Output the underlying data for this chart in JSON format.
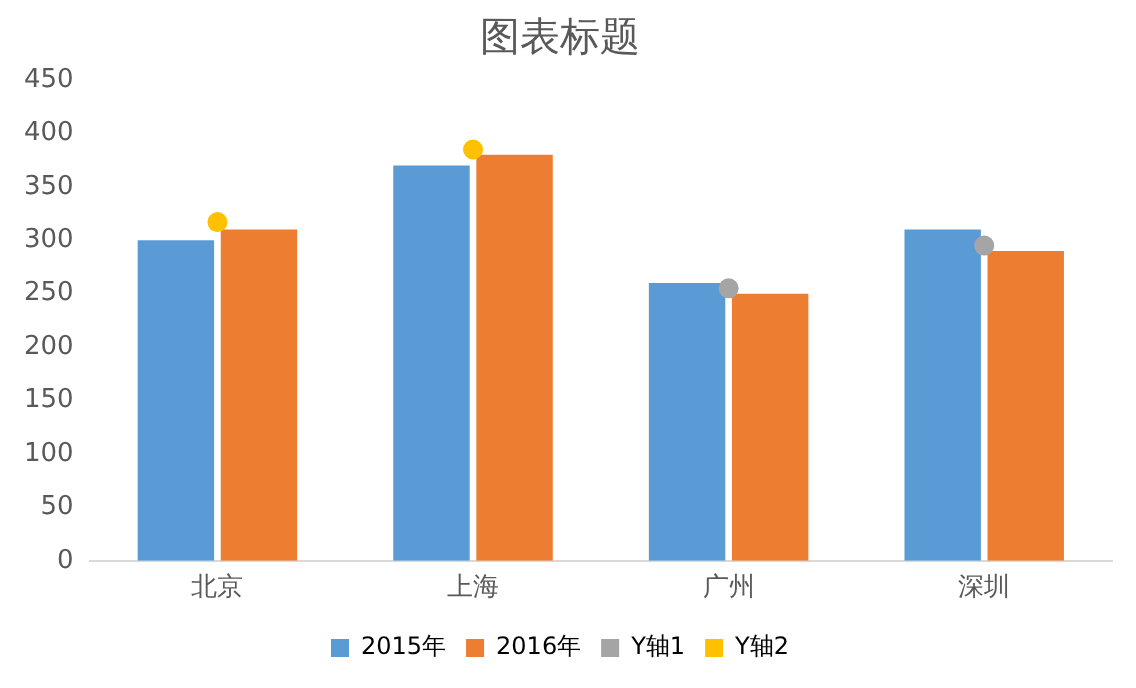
{
  "chart_data": {
    "type": "bar",
    "title": "图表标题",
    "categories": [
      "北京",
      "上海",
      "广州",
      "深圳"
    ],
    "series": [
      {
        "name": "2015年",
        "color": "#5b9bd5",
        "values": [
          300,
          370,
          260,
          310
        ]
      },
      {
        "name": "2016年",
        "color": "#ed7d31",
        "values": [
          310,
          380,
          250,
          290
        ]
      },
      {
        "name": "Y轴1",
        "type": "scatter",
        "color": "#a5a5a5",
        "x": [
          "北京",
          "上海",
          "广州",
          "深圳"
        ],
        "values": [
          null,
          null,
          255,
          295
        ]
      },
      {
        "name": "Y轴2",
        "type": "scatter",
        "color": "#ffc000",
        "x": [
          "北京",
          "上海",
          "广州",
          "深圳"
        ],
        "values": [
          317,
          385,
          null,
          null
        ]
      }
    ],
    "ylim": [
      0,
      450
    ],
    "yticks": [
      0,
      50,
      100,
      150,
      200,
      250,
      300,
      350,
      400,
      450
    ],
    "grid": false,
    "legend": "bottom",
    "marker": "circle"
  }
}
